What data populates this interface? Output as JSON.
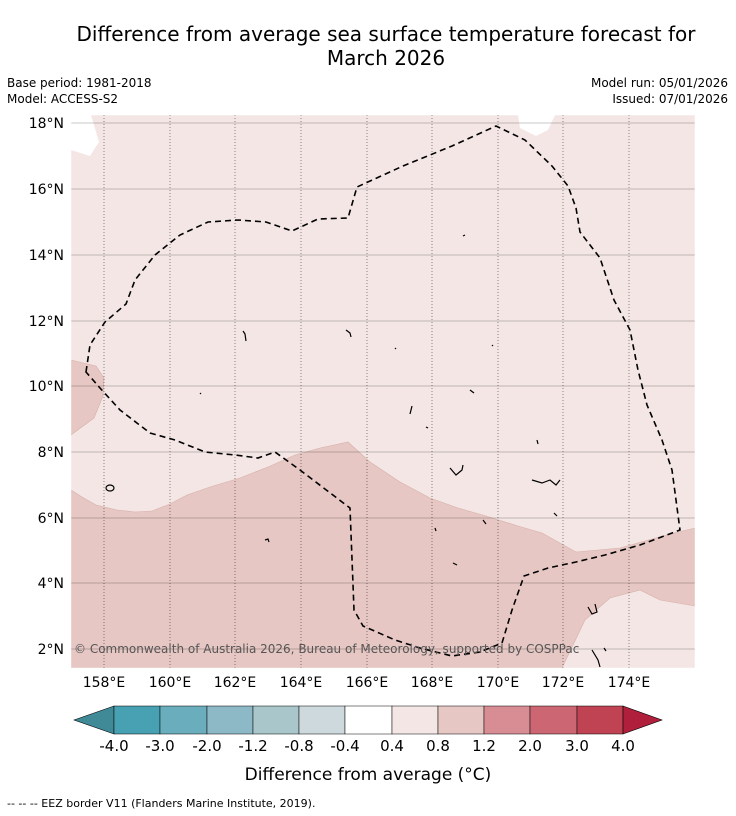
{
  "title": {
    "line1": "Difference from average sea surface temperature forecast for",
    "line2": "March 2026"
  },
  "meta": {
    "base_period": "Base period: 1981-2018",
    "model": "Model: ACCESS-S2",
    "model_run": "Model run: 05/01/2026",
    "issued": "Issued: 07/01/2026"
  },
  "map": {
    "lat_labels": [
      "18°N",
      "16°N",
      "14°N",
      "12°N",
      "10°N",
      "8°N",
      "6°N",
      "4°N",
      "2°N"
    ],
    "lon_labels": [
      "158°E",
      "160°E",
      "162°E",
      "164°E",
      "166°E",
      "168°E",
      "170°E",
      "172°E",
      "174°E"
    ],
    "copyright": "© Commonwealth of Australia 2026, Bureau of Meteorology, supported by COSPPac",
    "colors": {
      "anomaly_0_4_0_8": "#f3e6e5",
      "anomaly_0_8_1_2": "#e6c7c3",
      "land_outline": "#000000"
    }
  },
  "colorbar": {
    "tick_labels": [
      "-4.0",
      "-3.0",
      "-2.0",
      "-1.2",
      "-0.8",
      "-0.4",
      "0.4",
      "0.8",
      "1.2",
      "2.0",
      "3.0",
      "4.0"
    ],
    "colors": [
      "#3f8a96",
      "#47a1b3",
      "#6aaebe",
      "#8cb9c5",
      "#a9c6cb",
      "#cdd9dc",
      "#ffffff",
      "#f3e6e5",
      "#e6c7c3",
      "#d88d95",
      "#cd6673",
      "#c04354",
      "#b01f3b"
    ],
    "label": "Difference from average (°C)"
  },
  "footer": {
    "eez_note": "--  --  -- EEZ border V11 (Flanders Marine Institute, 2019)."
  }
}
